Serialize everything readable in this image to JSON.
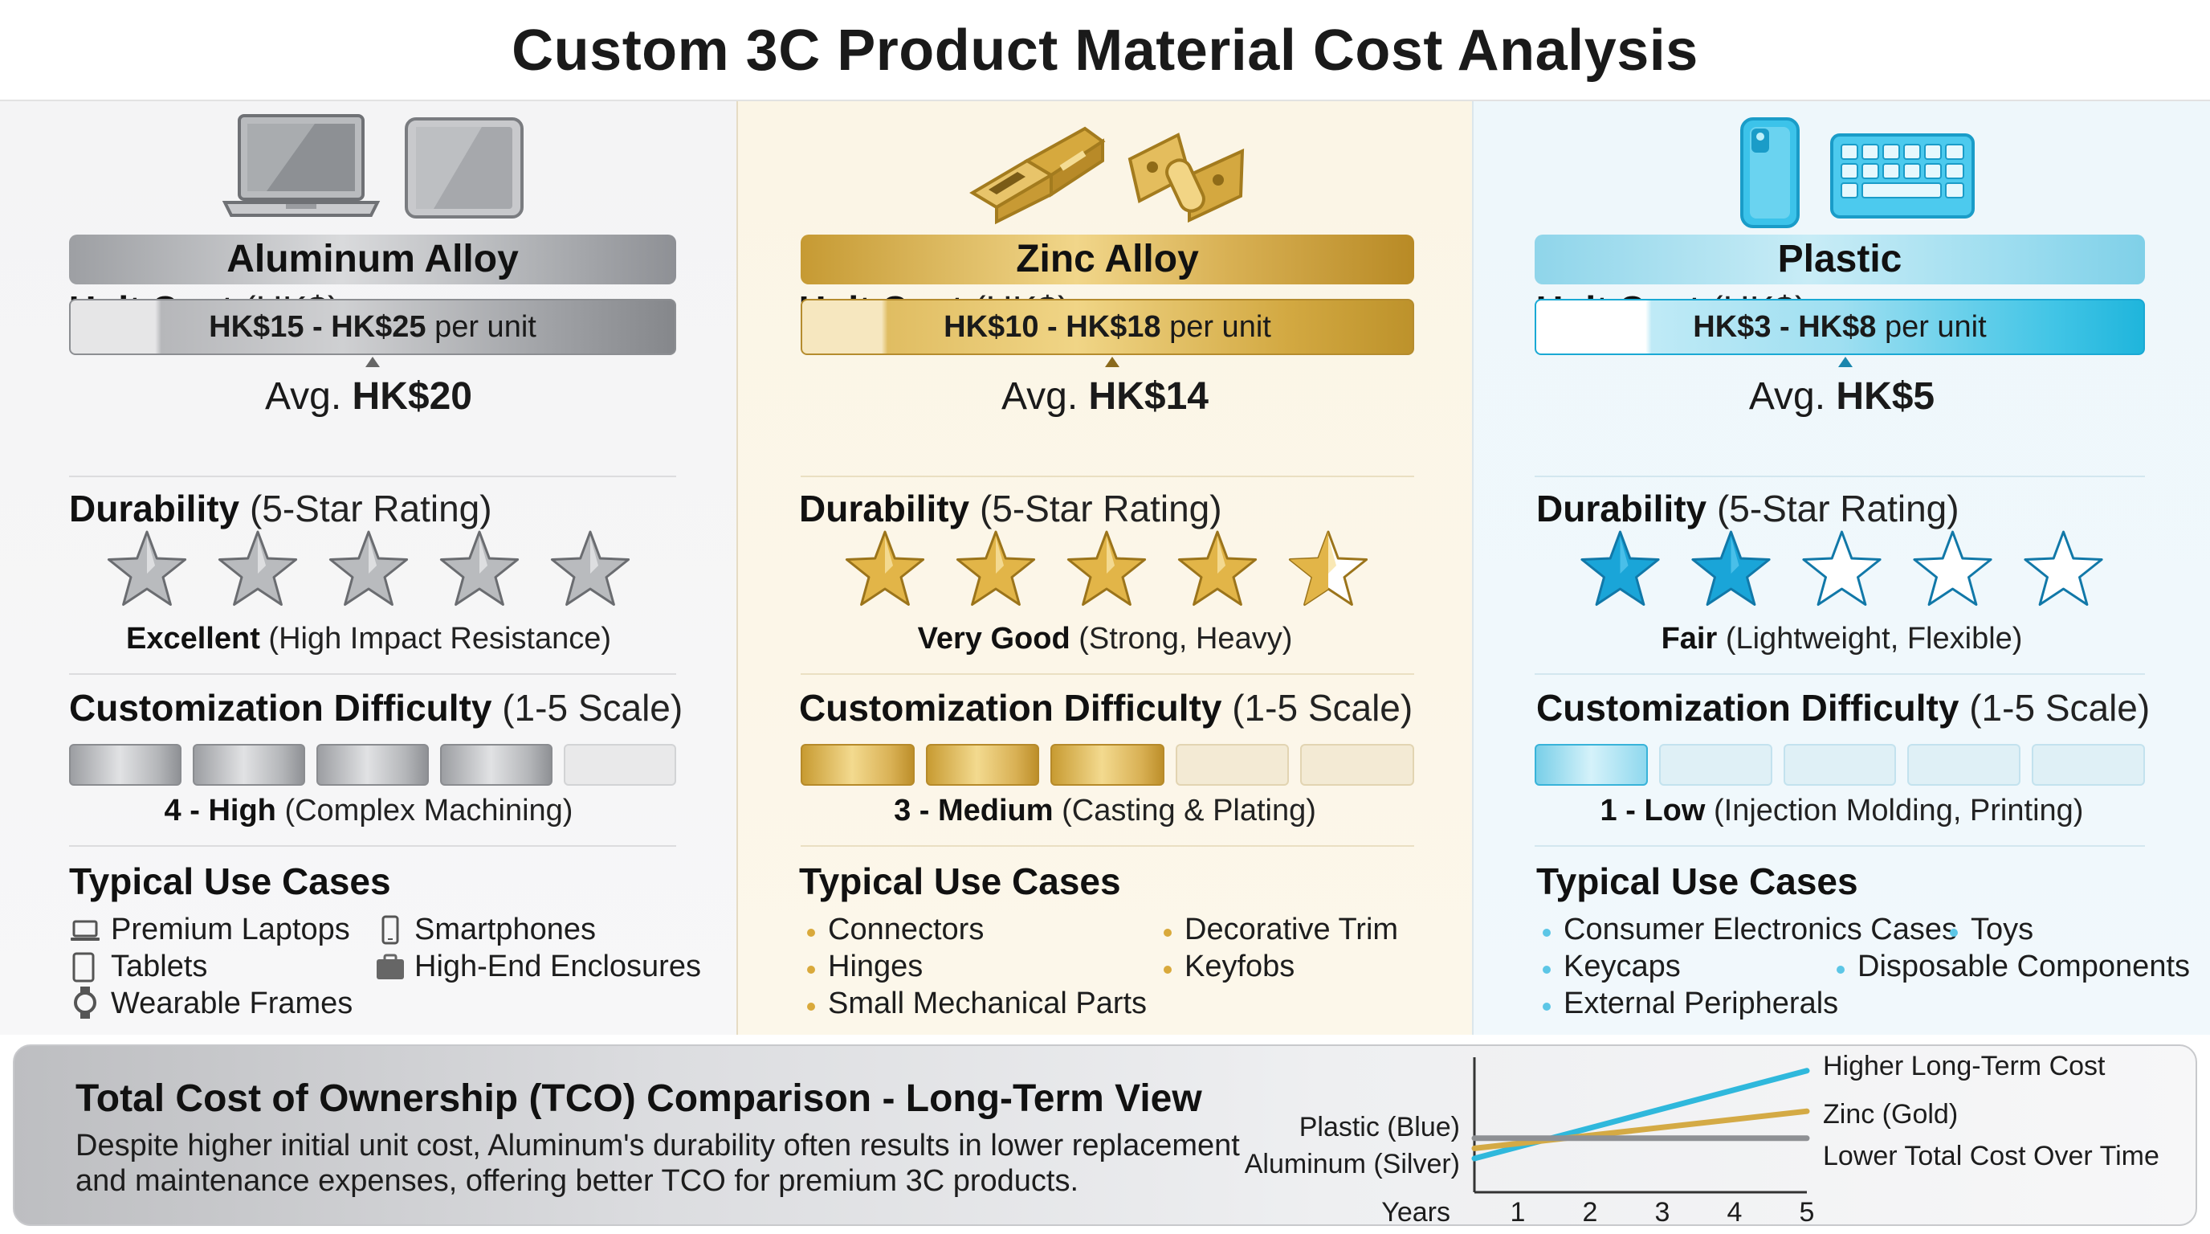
{
  "title": "Custom 3C Product Material Cost Analysis",
  "colors": {
    "aluminum": "#9d9fa3",
    "zinc": "#d4a83e",
    "plastic": "#1fb5dc"
  },
  "columns": [
    {
      "key": "aluminum",
      "material": "Aluminum Alloy",
      "icons": [
        "laptop-icon",
        "tablet-icon"
      ],
      "unit_cost_label": "Unit Cost",
      "unit_cost_unit": "(HK$)",
      "range": "HK$15 - HK$25",
      "per_unit": "per unit",
      "avg_label": "Avg.",
      "avg_value": "HK$20",
      "durability_label": "Durability",
      "durability_scale": "(5-Star Rating)",
      "durability_stars": 5,
      "durability_rating": "Excellent",
      "durability_note": "(High Impact Resistance)",
      "custom_label": "Customization Difficulty",
      "custom_scale": "(1-5 Scale)",
      "custom_level": 4,
      "custom_rating": "4 - High",
      "custom_note": "(Complex Machining)",
      "use_title": "Typical Use Cases",
      "uses": [
        "Premium Laptops",
        "Smartphones",
        "Tablets",
        "High-End Enclosures",
        "Wearable Frames"
      ]
    },
    {
      "key": "zinc",
      "material": "Zinc Alloy",
      "icons": [
        "usb-connector-icon",
        "hinge-icon"
      ],
      "unit_cost_label": "Unit Cost",
      "unit_cost_unit": "(HK$)",
      "range": "HK$10 - HK$18",
      "per_unit": "per unit",
      "avg_label": "Avg.",
      "avg_value": "HK$14",
      "durability_label": "Durability",
      "durability_scale": "(5-Star Rating)",
      "durability_stars": 4.5,
      "durability_rating": "Very Good",
      "durability_note": "(Strong, Heavy)",
      "custom_label": "Customization Difficulty",
      "custom_scale": "(1-5 Scale)",
      "custom_level": 3,
      "custom_rating": "3 - Medium",
      "custom_note": "(Casting & Plating)",
      "use_title": "Typical Use Cases",
      "uses": [
        "Connectors",
        "Decorative Trim",
        "Hinges",
        "Keyfobs",
        "Small Mechanical Parts"
      ]
    },
    {
      "key": "plastic",
      "material": "Plastic",
      "icons": [
        "phone-case-icon",
        "keyboard-icon"
      ],
      "unit_cost_label": "Unit Cost",
      "unit_cost_unit": "(HK$)",
      "range": "HK$3 - HK$8",
      "per_unit": "per unit",
      "avg_label": "Avg.",
      "avg_value": "HK$5",
      "durability_label": "Durability",
      "durability_scale": "(5-Star Rating)",
      "durability_stars": 2,
      "durability_rating": "Fair",
      "durability_note": "(Lightweight, Flexible)",
      "custom_label": "Customization Difficulty",
      "custom_scale": "(1-5 Scale)",
      "custom_level": 1,
      "custom_rating": "1 - Low",
      "custom_note": "(Injection Molding, Printing)",
      "use_title": "Typical Use Cases",
      "uses": [
        "Consumer Electronics Cases",
        "Toys",
        "Keycaps",
        "Disposable Components",
        "External Peripherals"
      ]
    }
  ],
  "tco": {
    "title": "Total Cost of Ownership (TCO) Comparison - Long-Term View",
    "body": "Despite higher initial unit cost, Aluminum's durability often results in lower replacement and maintenance expenses, offering better TCO for premium 3C products.",
    "chart_data": {
      "type": "line",
      "xlabel": "Years",
      "x": [
        1,
        2,
        3,
        4,
        5
      ],
      "left_labels": [
        "Plastic (Blue)",
        "Aluminum (Silver)"
      ],
      "series": [
        {
          "name": "Plastic",
          "color": "#2fb8dc",
          "start": 1.0,
          "end": 3.6,
          "end_label": "Higher Long-Term Cost"
        },
        {
          "name": "Zinc",
          "color": "#d4aa45",
          "start": 1.3,
          "end": 2.4,
          "end_label": "Zinc (Gold)"
        },
        {
          "name": "Aluminum",
          "color": "#8e9094",
          "start": 1.6,
          "end": 1.6,
          "end_label": "Lower Total Cost Over Time"
        }
      ],
      "ylim": [
        0,
        4
      ]
    }
  }
}
